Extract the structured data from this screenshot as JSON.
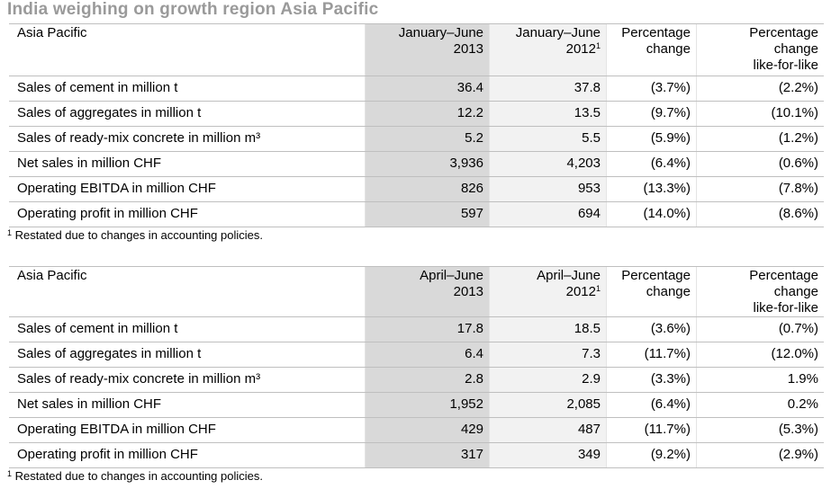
{
  "title": "India weighing on growth region Asia Pacific",
  "tables": [
    {
      "header": [
        {
          "lines": [
            "Asia Pacific"
          ]
        },
        {
          "lines": [
            "January–June",
            "2013"
          ]
        },
        {
          "lines": [
            "January–June",
            "2012"
          ],
          "note": "1"
        },
        {
          "lines": [
            "Percentage",
            "change"
          ]
        },
        {
          "lines": [
            "Percentage",
            "change",
            "like-for-like"
          ]
        }
      ],
      "rows": [
        [
          "Sales of cement in million t",
          "36.4",
          "37.8",
          "(3.7%)",
          "(2.2%)"
        ],
        [
          "Sales of aggregates in million t",
          "12.2",
          "13.5",
          "(9.7%)",
          "(10.1%)"
        ],
        [
          "Sales of ready-mix concrete in million m³",
          "5.2",
          "5.5",
          "(5.9%)",
          "(1.2%)"
        ],
        [
          "Net sales in million CHF",
          "3,936",
          "4,203",
          "(6.4%)",
          "(0.6%)"
        ],
        [
          "Operating EBITDA in million CHF",
          "826",
          "953",
          "(13.3%)",
          "(7.8%)"
        ],
        [
          "Operating profit in million CHF",
          "597",
          "694",
          "(14.0%)",
          "(8.6%)"
        ]
      ],
      "footnote": {
        "mark": "1",
        "text": "Restated due to changes in accounting policies."
      }
    },
    {
      "header": [
        {
          "lines": [
            "Asia Pacific"
          ]
        },
        {
          "lines": [
            "April–June",
            "2013"
          ]
        },
        {
          "lines": [
            "April–June",
            "2012"
          ],
          "note": "1"
        },
        {
          "lines": [
            "Percentage",
            "change"
          ]
        },
        {
          "lines": [
            "Percentage",
            "change",
            "like-for-like"
          ]
        }
      ],
      "rows": [
        [
          "Sales of cement in million t",
          "17.8",
          "18.5",
          "(3.6%)",
          "(0.7%)"
        ],
        [
          "Sales of aggregates in million t",
          "6.4",
          "7.3",
          "(11.7%)",
          "(12.0%)"
        ],
        [
          "Sales of ready-mix concrete in million m³",
          "2.8",
          "2.9",
          "(3.3%)",
          "1.9%"
        ],
        [
          "Net sales in million CHF",
          "1,952",
          "2,085",
          "(6.4%)",
          "0.2%"
        ],
        [
          "Operating EBITDA in million CHF",
          "429",
          "487",
          "(11.7%)",
          "(5.3%)"
        ],
        [
          "Operating profit in million CHF",
          "317",
          "349",
          "(9.2%)",
          "(2.9%)"
        ]
      ],
      "footnote": {
        "mark": "1",
        "text": "Restated due to changes in accounting policies."
      }
    }
  ]
}
